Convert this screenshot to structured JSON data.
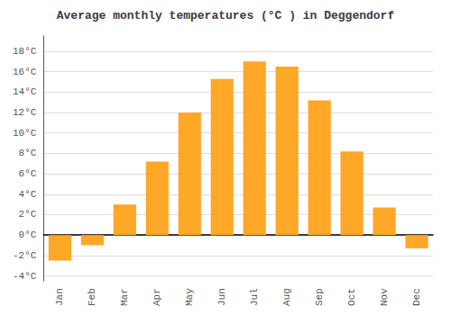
{
  "chart_data": {
    "type": "bar",
    "title": "Average monthly temperatures (°C ) in Deggendorf",
    "categories": [
      "Jan",
      "Feb",
      "Mar",
      "Apr",
      "May",
      "Jun",
      "Jul",
      "Aug",
      "Sep",
      "Oct",
      "Nov",
      "Dec"
    ],
    "values": [
      -2.5,
      -1.0,
      3.0,
      7.2,
      12.0,
      15.3,
      17.0,
      16.5,
      13.2,
      8.2,
      2.7,
      -1.3
    ],
    "color": "#FFA726",
    "ylim": [
      -4.5,
      19.5
    ],
    "yticks": [
      {
        "value": -4,
        "label": "-4°C"
      },
      {
        "value": -2,
        "label": "-2°C"
      },
      {
        "value": 0,
        "label": "0°C"
      },
      {
        "value": 2,
        "label": "2°C"
      },
      {
        "value": 4,
        "label": "4°C"
      },
      {
        "value": 6,
        "label": "6°C"
      },
      {
        "value": 8,
        "label": "8°C"
      },
      {
        "value": 10,
        "label": "10°C"
      },
      {
        "value": 12,
        "label": "12°C"
      },
      {
        "value": 14,
        "label": "14°C"
      },
      {
        "value": 16,
        "label": "16°C"
      },
      {
        "value": 18,
        "label": "18°C"
      }
    ],
    "grid": true
  }
}
